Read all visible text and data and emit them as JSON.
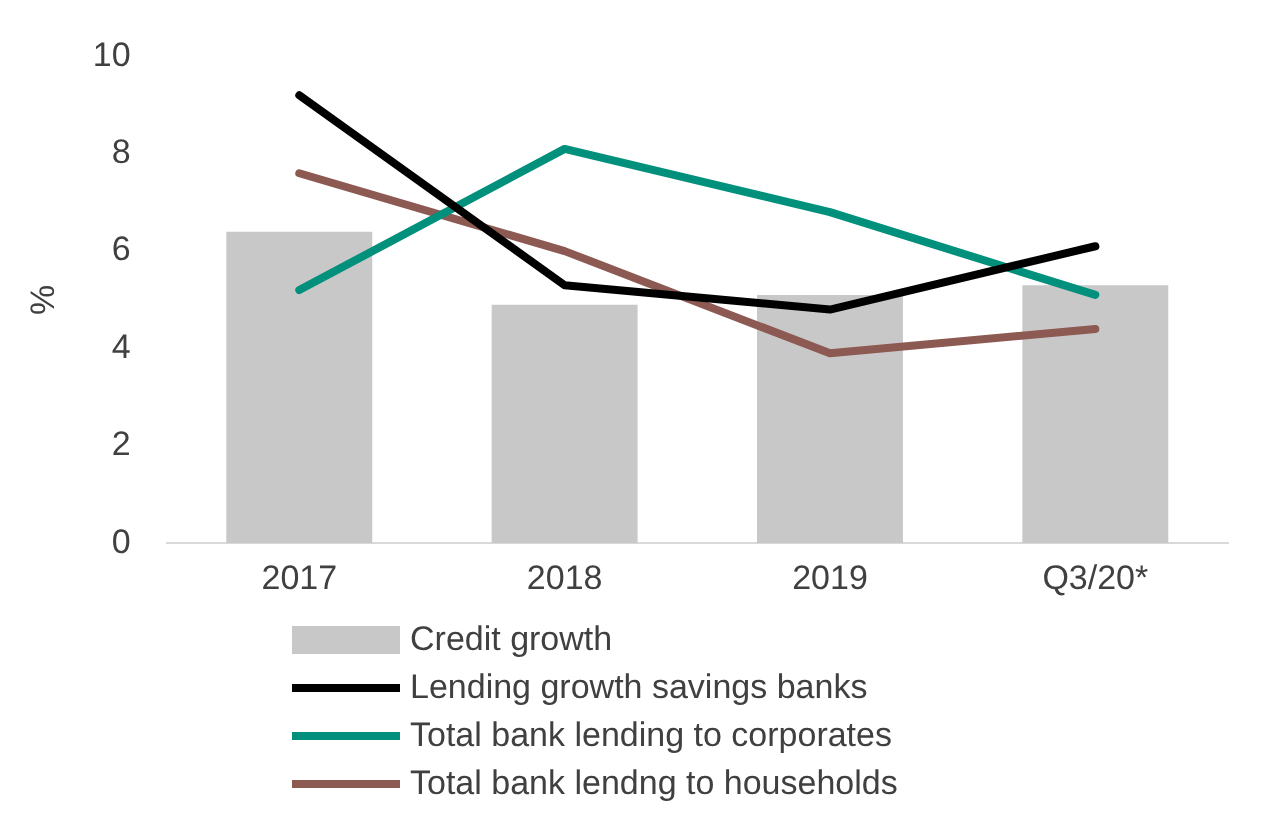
{
  "chart_data": {
    "type": "bar",
    "ylabel": "%",
    "categories": [
      "2017",
      "2018",
      "2019",
      "Q3/20*"
    ],
    "ylim": [
      0,
      10
    ],
    "yticks": [
      0,
      2,
      4,
      6,
      8,
      10
    ],
    "grid": false,
    "legend": "bottom",
    "series": [
      {
        "name": "Credit growth",
        "color": "#c8c8c8",
        "values": [
          6.4,
          4.9,
          5.1,
          5.3
        ]
      },
      {
        "name": "Lending growth savings banks",
        "type": "line",
        "color": "#000000",
        "values": [
          9.2,
          5.3,
          4.8,
          6.1
        ]
      },
      {
        "name": "Total bank lending to corporates",
        "type": "line",
        "color": "#00907c",
        "values": [
          5.2,
          8.1,
          6.8,
          5.1
        ]
      },
      {
        "name": "Total bank lendng to households",
        "type": "line",
        "color": "#8c5a52",
        "values": [
          7.6,
          6.0,
          3.9,
          4.4
        ]
      }
    ]
  }
}
